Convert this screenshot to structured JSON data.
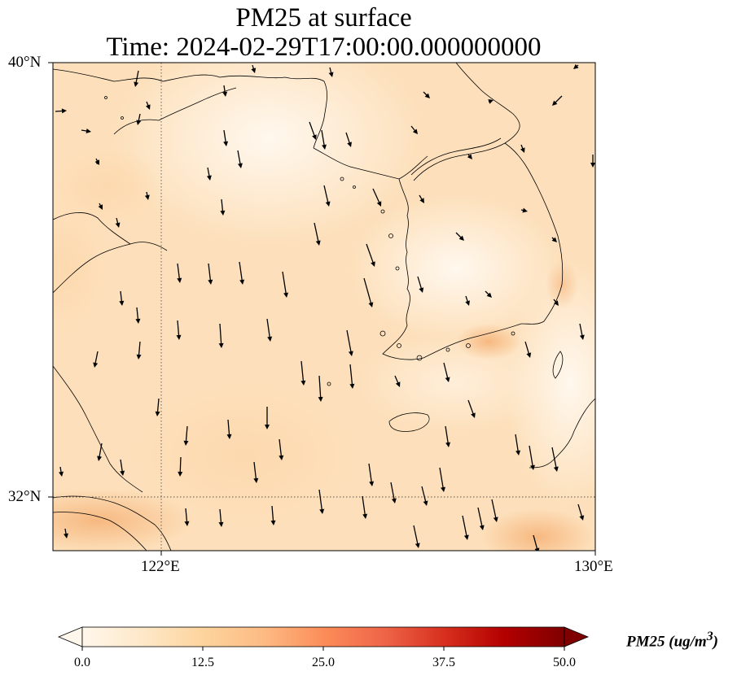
{
  "title_line1": "PM25 at surface",
  "title_line2": "Time: 2024-02-29T17:00:00.000000000",
  "lat_labels": [
    "40°N",
    "32°N"
  ],
  "lon_labels": [
    "122°E",
    "130°E"
  ],
  "extent": {
    "lon_min": 120,
    "lon_max": 130,
    "lat_min": 31,
    "lat_max": 40
  },
  "gridlines": {
    "lon": [
      122
    ],
    "lat": [
      32
    ]
  },
  "colorbar": {
    "label_prefix": "PM25 (ug/m",
    "label_sup": "3",
    "label_suffix": ")",
    "ticks": [
      "0.0",
      "12.5",
      "25.0",
      "37.5",
      "50.0"
    ],
    "tick_values": [
      0,
      12.5,
      25,
      37.5,
      50
    ],
    "min": 0,
    "max": 50,
    "extend": "both",
    "colormap": "OrRd",
    "colors": [
      "#fff7ec",
      "#fee8c8",
      "#fdd49e",
      "#fdbb84",
      "#fc8d59",
      "#ef6548",
      "#d7301f",
      "#b30000",
      "#7f0000"
    ]
  },
  "field_colors": {
    "low": "#fff3e2",
    "mid": "#fde2bf",
    "high": "#f8c089"
  },
  "wind_style": {
    "color": "#000000",
    "direction": "mostly southward"
  }
}
